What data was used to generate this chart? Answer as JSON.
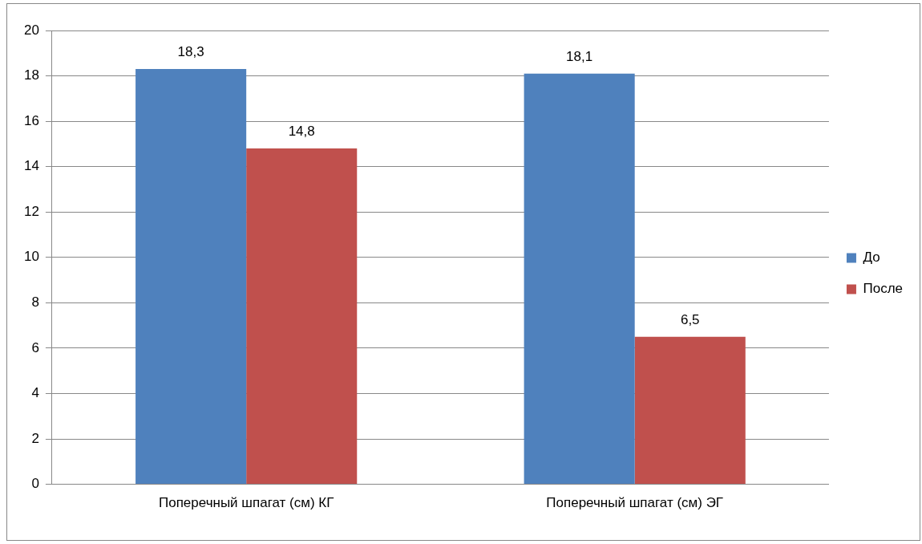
{
  "chart_data": {
    "type": "bar",
    "categories": [
      "Поперечный шпагат (см) КГ",
      "Поперечный шпагат (см) ЭГ"
    ],
    "series": [
      {
        "name": "До",
        "color": "#4f81bd",
        "values": [
          18.3,
          18.1
        ],
        "value_labels": [
          "18,3",
          "18,1"
        ]
      },
      {
        "name": "После",
        "color": "#c0504d",
        "values": [
          14.8,
          6.5
        ],
        "value_labels": [
          "14,8",
          "6,5"
        ]
      }
    ],
    "ylim": [
      0,
      20
    ],
    "yticks": [
      0,
      2,
      4,
      6,
      8,
      10,
      12,
      14,
      16,
      18,
      20
    ],
    "grid": "y",
    "legend": "right"
  }
}
